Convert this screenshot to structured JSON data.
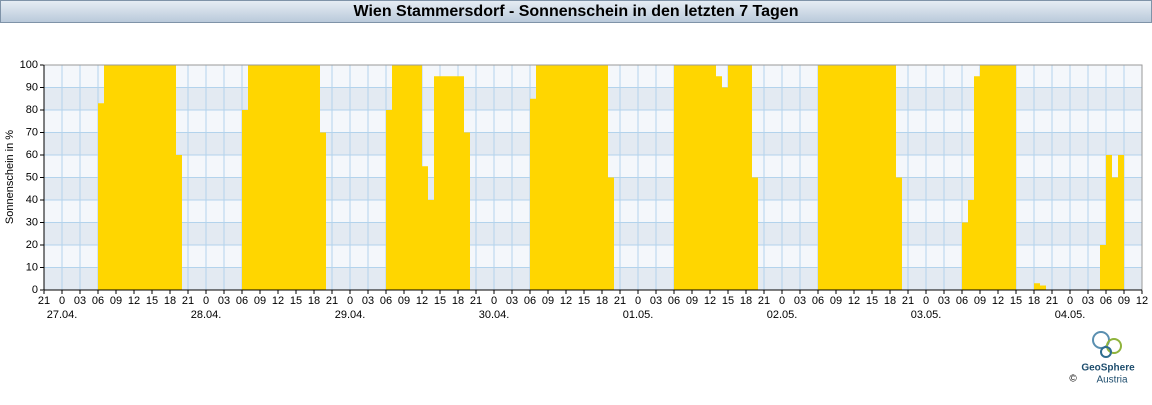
{
  "chart_data": {
    "type": "bar",
    "title": "Wien Stammersdorf - Sonnenschein in den letzten 7 Tagen",
    "y_label": "Sonnenschein in %",
    "color": "#ffd600",
    "grid": true,
    "values": [
      0,
      0,
      0,
      0,
      0,
      0,
      0,
      0,
      0,
      83,
      100,
      100,
      100,
      100,
      100,
      100,
      100,
      100,
      100,
      100,
      100,
      100,
      60,
      0,
      0,
      0,
      0,
      0,
      0,
      0,
      0,
      0,
      0,
      80,
      100,
      100,
      100,
      100,
      100,
      100,
      100,
      100,
      100,
      100,
      100,
      100,
      70,
      0,
      0,
      0,
      0,
      0,
      0,
      0,
      0,
      0,
      0,
      80,
      100,
      100,
      100,
      100,
      100,
      55,
      40,
      95,
      95,
      95,
      95,
      95,
      70,
      0,
      0,
      0,
      0,
      0,
      0,
      0,
      0,
      0,
      0,
      85,
      100,
      100,
      100,
      100,
      100,
      100,
      100,
      100,
      100,
      100,
      100,
      100,
      50,
      0,
      0,
      0,
      0,
      0,
      0,
      0,
      0,
      0,
      0,
      100,
      100,
      100,
      100,
      100,
      100,
      100,
      95,
      90,
      100,
      100,
      100,
      100,
      50,
      0,
      0,
      0,
      0,
      0,
      0,
      0,
      0,
      0,
      0,
      100,
      100,
      100,
      100,
      100,
      100,
      100,
      100,
      100,
      100,
      100,
      100,
      100,
      50,
      0,
      0,
      0,
      0,
      0,
      0,
      0,
      0,
      0,
      0,
      30,
      40,
      95,
      100,
      100,
      100,
      100,
      100,
      100,
      0,
      0,
      0,
      3,
      2,
      0,
      0,
      0,
      0,
      0,
      0,
      0,
      0,
      0,
      20,
      60,
      50,
      60,
      0,
      0,
      0
    ],
    "xlim": [
      0,
      183
    ],
    "xticks": [
      {
        "value": 0,
        "label": "21"
      },
      {
        "value": 3,
        "label": "0"
      },
      {
        "value": 6,
        "label": "03"
      },
      {
        "value": 9,
        "label": "06"
      },
      {
        "value": 12,
        "label": "09"
      },
      {
        "value": 15,
        "label": "12"
      },
      {
        "value": 18,
        "label": "15"
      },
      {
        "value": 21,
        "label": "18"
      },
      {
        "value": 24,
        "label": "21"
      },
      {
        "value": 27,
        "label": "0"
      },
      {
        "value": 30,
        "label": "03"
      },
      {
        "value": 33,
        "label": "06"
      },
      {
        "value": 36,
        "label": "09"
      },
      {
        "value": 39,
        "label": "12"
      },
      {
        "value": 42,
        "label": "15"
      },
      {
        "value": 45,
        "label": "18"
      },
      {
        "value": 48,
        "label": "21"
      },
      {
        "value": 51,
        "label": "0"
      },
      {
        "value": 54,
        "label": "03"
      },
      {
        "value": 57,
        "label": "06"
      },
      {
        "value": 60,
        "label": "09"
      },
      {
        "value": 63,
        "label": "12"
      },
      {
        "value": 66,
        "label": "15"
      },
      {
        "value": 69,
        "label": "18"
      },
      {
        "value": 72,
        "label": "21"
      },
      {
        "value": 75,
        "label": "0"
      },
      {
        "value": 78,
        "label": "03"
      },
      {
        "value": 81,
        "label": "06"
      },
      {
        "value": 84,
        "label": "09"
      },
      {
        "value": 87,
        "label": "12"
      },
      {
        "value": 90,
        "label": "15"
      },
      {
        "value": 93,
        "label": "18"
      },
      {
        "value": 96,
        "label": "21"
      },
      {
        "value": 99,
        "label": "0"
      },
      {
        "value": 102,
        "label": "03"
      },
      {
        "value": 105,
        "label": "06"
      },
      {
        "value": 108,
        "label": "09"
      },
      {
        "value": 111,
        "label": "12"
      },
      {
        "value": 114,
        "label": "15"
      },
      {
        "value": 117,
        "label": "18"
      },
      {
        "value": 120,
        "label": "21"
      },
      {
        "value": 123,
        "label": "0"
      },
      {
        "value": 126,
        "label": "03"
      },
      {
        "value": 129,
        "label": "06"
      },
      {
        "value": 132,
        "label": "09"
      },
      {
        "value": 135,
        "label": "12"
      },
      {
        "value": 138,
        "label": "15"
      },
      {
        "value": 141,
        "label": "18"
      },
      {
        "value": 144,
        "label": "21"
      },
      {
        "value": 147,
        "label": "0"
      },
      {
        "value": 150,
        "label": "03"
      },
      {
        "value": 153,
        "label": "06"
      },
      {
        "value": 156,
        "label": "09"
      },
      {
        "value": 159,
        "label": "12"
      },
      {
        "value": 162,
        "label": "15"
      },
      {
        "value": 165,
        "label": "18"
      },
      {
        "value": 168,
        "label": "21"
      },
      {
        "value": 171,
        "label": "0"
      },
      {
        "value": 174,
        "label": "03"
      },
      {
        "value": 177,
        "label": "06"
      },
      {
        "value": 180,
        "label": "09"
      },
      {
        "value": 183,
        "label": "12"
      }
    ],
    "date_labels": [
      {
        "value": 3,
        "label": "27.04."
      },
      {
        "value": 27,
        "label": "28.04."
      },
      {
        "value": 51,
        "label": "29.04."
      },
      {
        "value": 75,
        "label": "30.04."
      },
      {
        "value": 99,
        "label": "01.05."
      },
      {
        "value": 123,
        "label": "02.05."
      },
      {
        "value": 147,
        "label": "03.05."
      },
      {
        "value": 171,
        "label": "04.05."
      }
    ],
    "ylim": [
      0,
      100
    ],
    "yticks": [
      0,
      10,
      20,
      30,
      40,
      50,
      60,
      70,
      80,
      90,
      100
    ]
  },
  "logo": {
    "name": "GeoSphere",
    "sub": "Austria",
    "copyright": "©"
  }
}
